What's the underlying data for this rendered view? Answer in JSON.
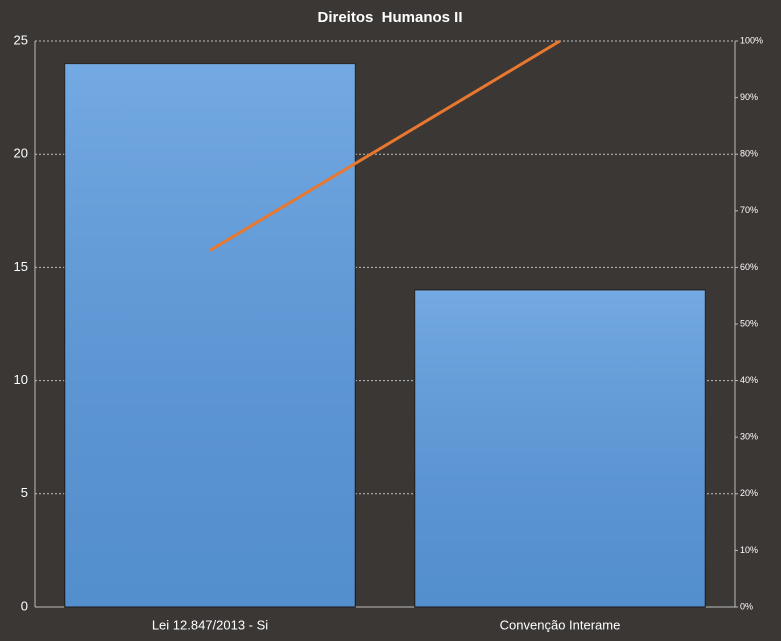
{
  "chart_data": {
    "type": "pareto",
    "title": "Direitos  Humanos II",
    "categories": [
      "Lei 12.847/2013 - Si",
      "Convenção Interame"
    ],
    "series": [
      {
        "type": "bar",
        "color": "#5b9bdf",
        "values": [
          24,
          14
        ]
      },
      {
        "type": "line",
        "axis": "y2",
        "color": "#e8782f",
        "values": [
          63,
          100
        ]
      }
    ],
    "ylim": [
      0,
      25
    ],
    "yticks": [
      0,
      5,
      10,
      15,
      20,
      25
    ],
    "y2lim": [
      0,
      100
    ],
    "y2ticks": [
      {
        "value": 0,
        "label": "0%"
      },
      {
        "value": 10,
        "label": "10%"
      },
      {
        "value": 20,
        "label": "20%"
      },
      {
        "value": 30,
        "label": "30%"
      },
      {
        "value": 40,
        "label": "40%"
      },
      {
        "value": 50,
        "label": "50%"
      },
      {
        "value": 60,
        "label": "60%"
      },
      {
        "value": 70,
        "label": "70%"
      },
      {
        "value": 80,
        "label": "80%"
      },
      {
        "value": 90,
        "label": "90%"
      },
      {
        "value": 100,
        "label": "100%"
      }
    ],
    "grid": true
  }
}
